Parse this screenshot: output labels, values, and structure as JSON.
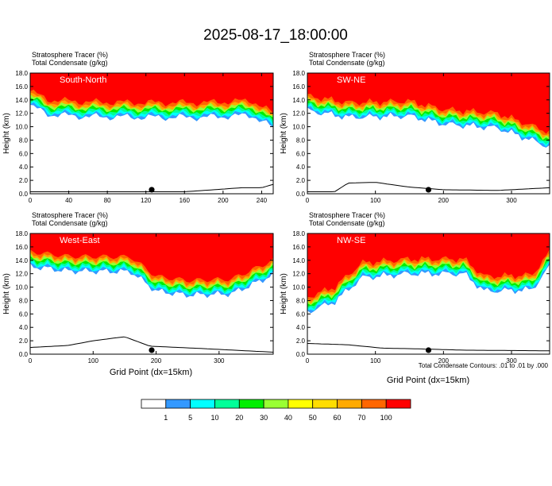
{
  "title": "2025-08-17_18:00:00",
  "colors": {
    "white": "#ffffff",
    "lightblue": "#3399ff",
    "cyan": "#00ffff",
    "seagreen": "#00ff99",
    "green": "#00ee00",
    "yellowgreen": "#99ff33",
    "yellow": "#ffff00",
    "gold": "#ffdd00",
    "orange": "#ffaa00",
    "darkorange": "#ff6600",
    "red": "#ff0000"
  },
  "colorbar": {
    "levels": [
      "1",
      "5",
      "10",
      "20",
      "30",
      "40",
      "50",
      "60",
      "70",
      "100"
    ],
    "colors": [
      "#ffffff",
      "#3399ff",
      "#00ffff",
      "#00ff99",
      "#00ee00",
      "#99ff33",
      "#ffff00",
      "#ffdd00",
      "#ffaa00",
      "#ff6600",
      "#ff0000"
    ]
  },
  "footnote": "Total Condensate Contours: .01 to .01 by .000",
  "chart_data": [
    {
      "type": "filled-contour",
      "panel_label": "South-North",
      "header_line1": "Stratosphere Tracer   (%)",
      "header_line2": "Total Condensate   (g/kg)",
      "xlabel": "",
      "ylabel": "Height (km)",
      "xlim": [
        0,
        252
      ],
      "xticks": [
        "0",
        "40",
        "80",
        "120",
        "160",
        "200",
        "240"
      ],
      "xtick_values": [
        0,
        40,
        80,
        120,
        160,
        200,
        240
      ],
      "ylim": [
        0,
        18
      ],
      "yticks": [
        "0.0",
        "2.0",
        "4.0",
        "6.0",
        "8.0",
        "10.0",
        "12.0",
        "14.0",
        "16.0",
        "18.0"
      ],
      "marker_x": 126,
      "tracer_base_km": [
        [
          0,
          15.3
        ],
        [
          20,
          14.0
        ],
        [
          60,
          13.7
        ],
        [
          120,
          13.6
        ],
        [
          180,
          13.6
        ],
        [
          230,
          13.9
        ],
        [
          252,
          12.0
        ]
      ],
      "terrain_km": [
        [
          0,
          0.3
        ],
        [
          100,
          0.3
        ],
        [
          160,
          0.3
        ],
        [
          190,
          0.6
        ],
        [
          220,
          0.9
        ],
        [
          240,
          0.9
        ],
        [
          252,
          1.4
        ]
      ]
    },
    {
      "type": "filled-contour",
      "panel_label": "SW-NE",
      "header_line1": "Stratosphere Tracer   (%)",
      "header_line2": "Total Condensate   (g/kg)",
      "xlabel": "",
      "ylabel": "Height (km)",
      "xlim": [
        0,
        356
      ],
      "xticks": [
        "0",
        "100",
        "200",
        "300"
      ],
      "xtick_values": [
        0,
        100,
        200,
        300
      ],
      "ylim": [
        0,
        18
      ],
      "yticks": [
        "0.0",
        "2.0",
        "4.0",
        "6.0",
        "8.0",
        "10.0",
        "12.0",
        "14.0",
        "16.0",
        "18.0"
      ],
      "marker_x": 178,
      "tracer_base_km": [
        [
          0,
          14.6
        ],
        [
          60,
          13.6
        ],
        [
          150,
          13.8
        ],
        [
          200,
          12.6
        ],
        [
          280,
          12.0
        ],
        [
          356,
          9.2
        ]
      ],
      "terrain_km": [
        [
          0,
          0.3
        ],
        [
          40,
          0.3
        ],
        [
          60,
          1.6
        ],
        [
          100,
          1.7
        ],
        [
          150,
          1.0
        ],
        [
          200,
          0.6
        ],
        [
          280,
          0.5
        ],
        [
          356,
          0.9
        ]
      ]
    },
    {
      "type": "filled-contour",
      "panel_label": "West-East",
      "header_line1": "Stratosphere Tracer   (%)",
      "header_line2": "Total Condensate   (g/kg)",
      "xlabel": "Grid Point (dx=15km)",
      "ylabel": "Height (km)",
      "xlim": [
        0,
        386
      ],
      "xticks": [
        "0",
        "100",
        "200",
        "300"
      ],
      "xtick_values": [
        0,
        100,
        200,
        300
      ],
      "ylim": [
        0,
        18
      ],
      "yticks": [
        "0.0",
        "2.0",
        "4.0",
        "6.0",
        "8.0",
        "10.0",
        "12.0",
        "14.0",
        "16.0",
        "18.0"
      ],
      "marker_x": 193,
      "tracer_base_km": [
        [
          0,
          15.3
        ],
        [
          60,
          14.6
        ],
        [
          160,
          14.5
        ],
        [
          200,
          11.6
        ],
        [
          250,
          11.0
        ],
        [
          320,
          11.2
        ],
        [
          386,
          14.0
        ]
      ],
      "terrain_km": [
        [
          0,
          1.0
        ],
        [
          60,
          1.3
        ],
        [
          100,
          2.0
        ],
        [
          150,
          2.6
        ],
        [
          190,
          1.2
        ],
        [
          260,
          0.9
        ],
        [
          386,
          0.3
        ]
      ]
    },
    {
      "type": "filled-contour",
      "panel_label": "NW-SE",
      "header_line1": "Stratosphere Tracer   (%)",
      "header_line2": "Total Condensate   (g/kg)",
      "xlabel": "Grid Point (dx=15km)",
      "ylabel": "Height (km)",
      "xlim": [
        0,
        356
      ],
      "xticks": [
        "0",
        "100",
        "200",
        "300"
      ],
      "xtick_values": [
        0,
        100,
        200,
        300
      ],
      "ylim": [
        0,
        18
      ],
      "yticks": [
        "0.0",
        "2.0",
        "4.0",
        "6.0",
        "8.0",
        "10.0",
        "12.0",
        "14.0",
        "16.0",
        "18.0"
      ],
      "marker_x": 178,
      "tracer_base_km": [
        [
          0,
          8.5
        ],
        [
          40,
          10.0
        ],
        [
          80,
          13.6
        ],
        [
          150,
          14.2
        ],
        [
          230,
          14.2
        ],
        [
          260,
          11.6
        ],
        [
          330,
          11.8
        ],
        [
          356,
          15.2
        ]
      ],
      "terrain_km": [
        [
          0,
          1.6
        ],
        [
          60,
          1.4
        ],
        [
          110,
          0.9
        ],
        [
          160,
          0.8
        ],
        [
          230,
          0.6
        ],
        [
          356,
          0.5
        ]
      ]
    }
  ]
}
